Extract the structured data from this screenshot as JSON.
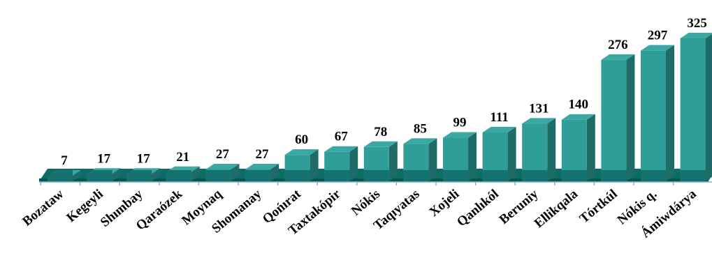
{
  "colors": {
    "bar_front": "#2f9e99",
    "bar_side": "#1f6b68",
    "bar_top": "#3ba8a3",
    "floor_band": "#0f6b66",
    "axis": "#7fb3d9"
  },
  "chart_data": {
    "type": "bar",
    "style": "3d-column",
    "categories": [
      "Bozataw",
      "Kegeyli",
      "Shımbay",
      "Qaraózek",
      "Moynaq",
      "Shomanay",
      "Qońırat",
      "Taxtakópir",
      "Nókis",
      "Taqıyatas",
      "Xojeli",
      "Qanlıkól",
      "Beruniy",
      "Ellikqala",
      "Tórtkúl",
      "Nókis q.",
      "Ámiwdárya"
    ],
    "values": [
      7,
      17,
      17,
      21,
      27,
      27,
      60,
      67,
      78,
      85,
      99,
      111,
      131,
      140,
      276,
      297,
      325
    ],
    "value_labels": [
      "7",
      "17",
      "17",
      "21",
      "27",
      "27",
      "60",
      "67",
      "78",
      "85",
      "99",
      "111",
      "131",
      "140",
      "276",
      "297",
      "325"
    ],
    "ylim": [
      0,
      325
    ],
    "grid": false,
    "legend": "none"
  }
}
